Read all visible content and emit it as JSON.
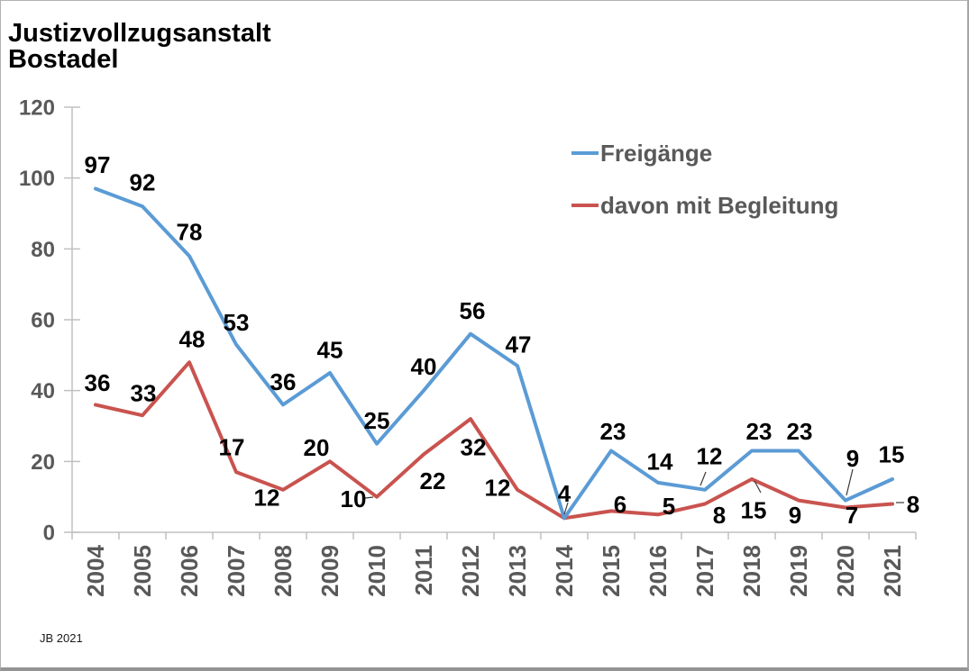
{
  "footer": "JB 2021",
  "chart_data": {
    "type": "line",
    "title": "Justizvollzugsanstalt Bostadel",
    "title_lines": [
      "Justizvollzugsanstalt",
      "Bostadel"
    ],
    "categories": [
      "2004",
      "2005",
      "2006",
      "2007",
      "2008",
      "2009",
      "2010",
      "2011",
      "2012",
      "2013",
      "2014",
      "2015",
      "2016",
      "2017",
      "2018",
      "2019",
      "2020",
      "2021"
    ],
    "series": [
      {
        "name": "Freigänge",
        "color": "#5B9BD5",
        "values": [
          97,
          92,
          78,
          53,
          36,
          45,
          25,
          40,
          56,
          47,
          4,
          23,
          14,
          12,
          23,
          23,
          9,
          15
        ]
      },
      {
        "name": "davon mit Begleitung",
        "color": "#C9534F",
        "values": [
          36,
          33,
          48,
          17,
          12,
          20,
          10,
          22,
          32,
          12,
          4,
          6,
          5,
          8,
          15,
          9,
          7,
          8
        ]
      }
    ],
    "xlabel": "",
    "ylabel": "",
    "ylim": [
      0,
      120
    ],
    "yticks": [
      0,
      20,
      40,
      60,
      80,
      100,
      120
    ],
    "grid": false,
    "legend_position": "top-right",
    "data_labels": true,
    "axis_color": "#c0c0c0",
    "tick_label_color": "#595959",
    "data_label_color": "#000000"
  }
}
